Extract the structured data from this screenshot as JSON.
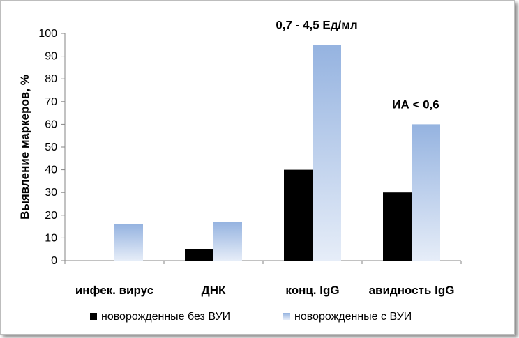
{
  "chart_data": {
    "type": "bar",
    "categories": [
      "инфек. вирус",
      "ДНК",
      "конц. IgG",
      "авидность IgG"
    ],
    "series": [
      {
        "name": "новорожденные без ВУИ",
        "values": [
          0,
          5,
          40,
          30
        ]
      },
      {
        "name": "новорожденные с ВУИ",
        "values": [
          16,
          17,
          95,
          60
        ]
      }
    ],
    "ylabel": "Выявление маркеров, %",
    "ylim": [
      0,
      100
    ],
    "yticks": [
      0,
      10,
      20,
      30,
      40,
      50,
      60,
      70,
      80,
      90,
      100
    ],
    "grid": false,
    "legend_position": "bottom",
    "annotations": [
      {
        "text": "0,7 - 4,5 Ед/мл",
        "category": "конц. IgG"
      },
      {
        "text": "ИА < 0,6",
        "category": "авидность IgG"
      }
    ],
    "colors": {
      "series1": "#000000",
      "series2_top": "#95b3e0",
      "series2_bottom": "#e6edf8"
    }
  }
}
